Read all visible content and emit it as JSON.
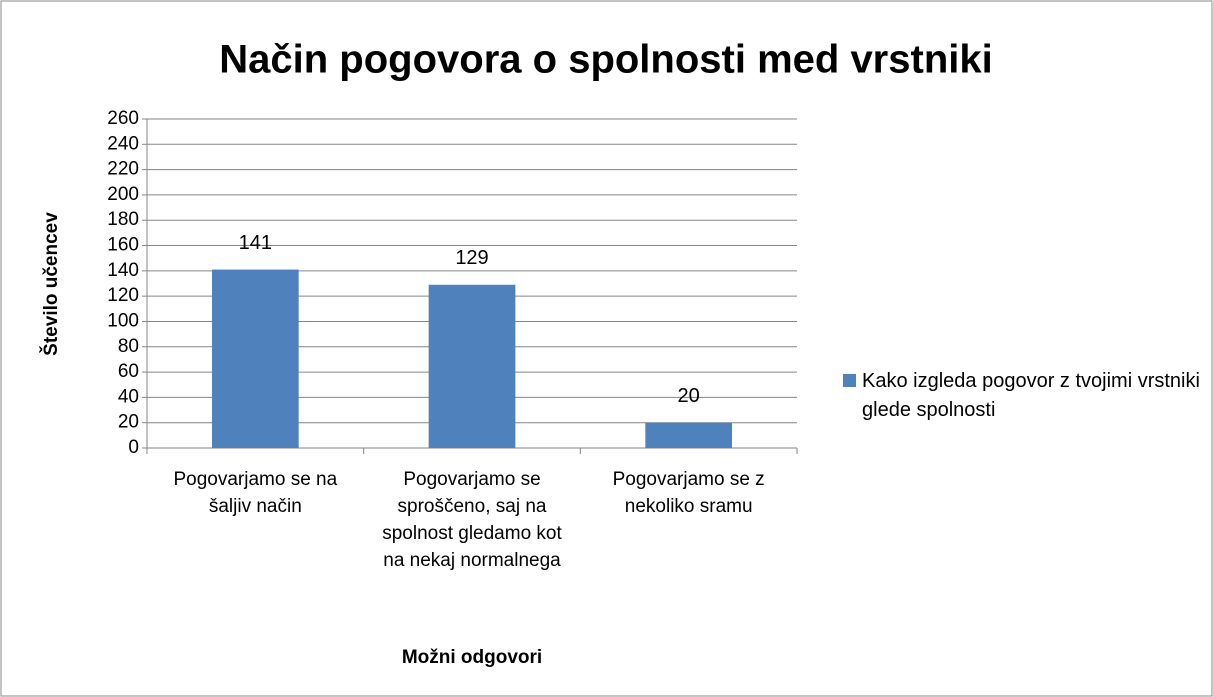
{
  "chart_data": {
    "type": "bar",
    "title": "Način pogovora o spolnosti med vrstniki",
    "x_label": "Možni odgovori",
    "y_label": "Število učencev",
    "categories": [
      "Pogovarjamo se na šaljiv način",
      "Pogovarjamo se sproščeno, saj na spolnost gledamo kot na nekaj normalnega",
      "Pogovarjamo se z nekoliko sramu"
    ],
    "series": [
      {
        "name": "Kako izgleda pogovor z tvojimi vrstniki glede spolnosti",
        "color": "#4f81bd",
        "values": [
          141,
          129,
          20
        ]
      }
    ],
    "ylim": [
      0,
      260
    ],
    "yticks": [
      0,
      20,
      40,
      60,
      80,
      100,
      120,
      140,
      160,
      180,
      200,
      220,
      240,
      260
    ],
    "grid": true,
    "legend": "right"
  }
}
